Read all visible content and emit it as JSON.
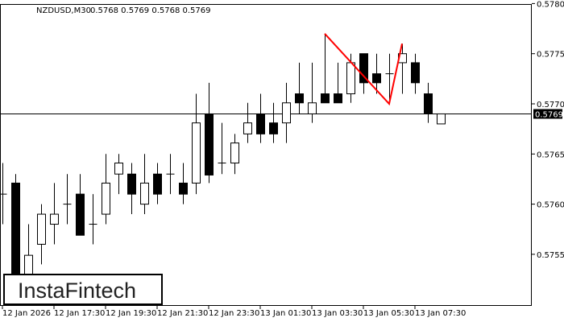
{
  "header": {
    "symbol": "NZDUSD,M30",
    "ohlc": "0.5768 0.5769 0.5768 0.5769"
  },
  "logo": "InstaFintech",
  "current_price_label": "0.5769",
  "colors": {
    "bull_body": "#ffffff",
    "bear_body": "#000000",
    "pattern_line": "#ff0000",
    "price_label_bg": "#000000"
  },
  "chart_data": {
    "type": "candlestick",
    "title": "NZDUSD,M30",
    "timeframe_minutes": 30,
    "ylim": [
      0.57505,
      0.578
    ],
    "yticks": [
      "0.5780",
      "0.5775",
      "0.5770",
      "0.5765",
      "0.5760",
      "0.5755"
    ],
    "ytick_values": [
      0.578,
      0.5775,
      0.577,
      0.5765,
      0.576,
      0.5755
    ],
    "xticks": [
      {
        "label": "12 Jan 2026",
        "candle": 0
      },
      {
        "label": "12 Jan 17:30",
        "candle": 4
      },
      {
        "label": "12 Jan 19:30",
        "candle": 8
      },
      {
        "label": "12 Jan 21:30",
        "candle": 12
      },
      {
        "label": "12 Jan 23:30",
        "candle": 16
      },
      {
        "label": "13 Jan 01:30",
        "candle": 20
      },
      {
        "label": "13 Jan 03:30",
        "candle": 24
      },
      {
        "label": "13 Jan 05:30",
        "candle": 28
      },
      {
        "label": "13 Jan 07:30",
        "candle": 32
      }
    ],
    "current_price": 0.5769,
    "candles": [
      [
        0.5761,
        0.57641,
        0.5758,
        0.5761
      ],
      [
        0.57621,
        0.5763,
        0.57505,
        0.5752
      ],
      [
        0.5752,
        0.5758,
        0.5751,
        0.57549
      ],
      [
        0.5756,
        0.576,
        0.5754,
        0.5759
      ],
      [
        0.5758,
        0.57621,
        0.5756,
        0.5759
      ],
      [
        0.576,
        0.5763,
        0.5758,
        0.576
      ],
      [
        0.5761,
        0.5763,
        0.57569,
        0.57569
      ],
      [
        0.5758,
        0.5761,
        0.5756,
        0.5758
      ],
      [
        0.5759,
        0.5765,
        0.5758,
        0.57621
      ],
      [
        0.5763,
        0.5765,
        0.5761,
        0.57641
      ],
      [
        0.5763,
        0.57641,
        0.5759,
        0.5761
      ],
      [
        0.576,
        0.5765,
        0.5759,
        0.57621
      ],
      [
        0.5763,
        0.57641,
        0.576,
        0.5761
      ],
      [
        0.5763,
        0.5765,
        0.5761,
        0.5763
      ],
      [
        0.57621,
        0.57641,
        0.576,
        0.5761
      ],
      [
        0.57621,
        0.5771,
        0.5761,
        0.57681
      ],
      [
        0.5769,
        0.57721,
        0.57621,
        0.57629
      ],
      [
        0.57641,
        0.57681,
        0.5763,
        0.57641
      ],
      [
        0.57641,
        0.5767,
        0.5763,
        0.57661
      ],
      [
        0.5767,
        0.57701,
        0.57661,
        0.57681
      ],
      [
        0.5769,
        0.5771,
        0.57661,
        0.5767
      ],
      [
        0.57681,
        0.57701,
        0.57661,
        0.5767
      ],
      [
        0.57681,
        0.57721,
        0.57661,
        0.57701
      ],
      [
        0.5771,
        0.57741,
        0.5769,
        0.57701
      ],
      [
        0.5769,
        0.57741,
        0.57681,
        0.57701
      ],
      [
        0.5771,
        0.5777,
        0.57701,
        0.57701
      ],
      [
        0.5771,
        0.57741,
        0.57701,
        0.57701
      ],
      [
        0.5771,
        0.5775,
        0.57701,
        0.57741
      ],
      [
        0.5775,
        0.5775,
        0.5771,
        0.57721
      ],
      [
        0.5773,
        0.5775,
        0.5771,
        0.57721
      ],
      [
        0.5773,
        0.5775,
        0.57701,
        0.5773
      ],
      [
        0.57741,
        0.5776,
        0.5771,
        0.5775
      ],
      [
        0.57741,
        0.5775,
        0.5771,
        0.57721
      ],
      [
        0.5771,
        0.57721,
        0.57681,
        0.5769
      ],
      [
        0.5768,
        0.5769,
        0.5768,
        0.5769
      ]
    ],
    "candle_format": [
      "open",
      "high",
      "low",
      "close"
    ],
    "pattern_line": [
      {
        "candle": 25,
        "price": 0.5777
      },
      {
        "candle": 30,
        "price": 0.577
      },
      {
        "candle": 31,
        "price": 0.5776
      }
    ]
  }
}
